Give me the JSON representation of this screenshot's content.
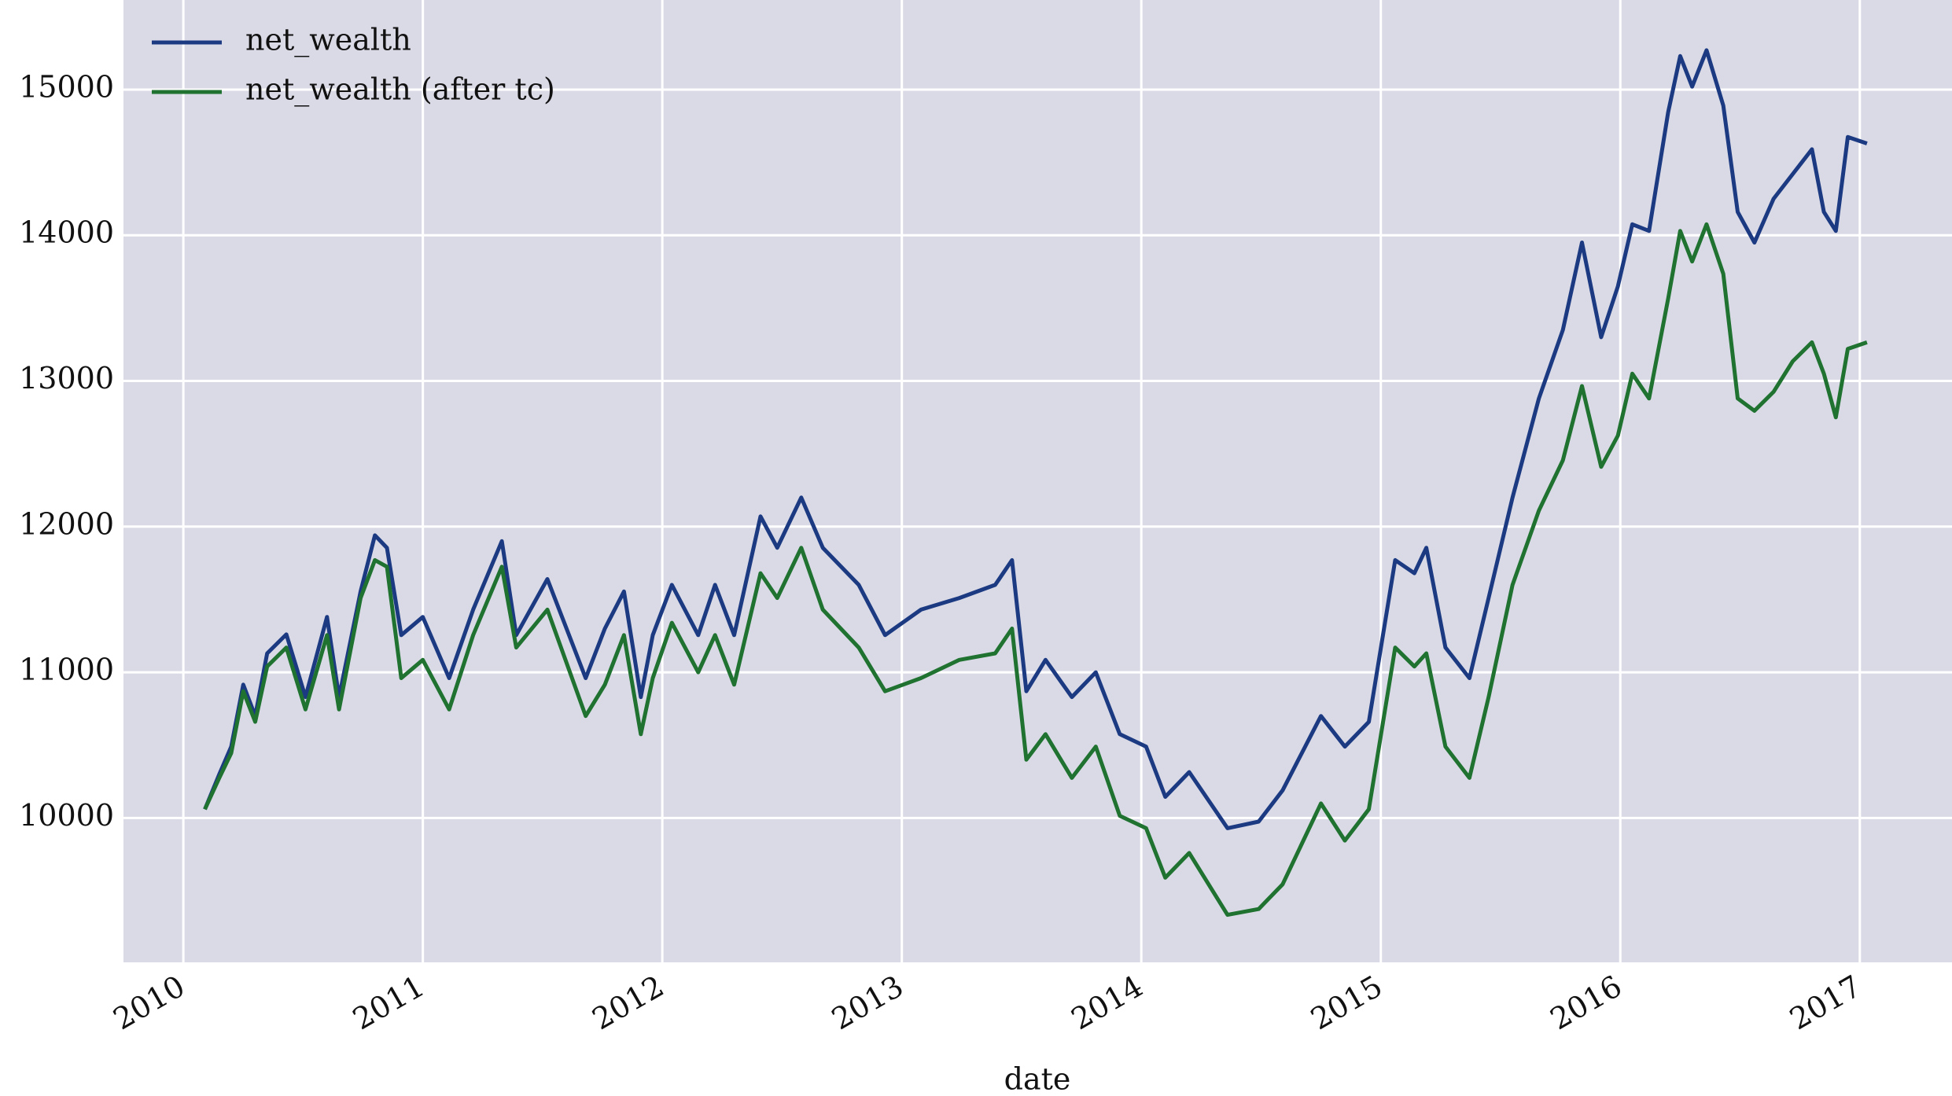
{
  "chart_data": {
    "type": "line",
    "xlabel": "date",
    "x": [
      2010.09,
      2010.15,
      2010.2,
      2010.25,
      2010.3,
      2010.35,
      2010.43,
      2010.51,
      2010.6,
      2010.65,
      2010.74,
      2010.8,
      2010.85,
      2010.91,
      2011.0,
      2011.11,
      2011.21,
      2011.33,
      2011.39,
      2011.52,
      2011.68,
      2011.76,
      2011.84,
      2011.91,
      2011.96,
      2012.04,
      2012.15,
      2012.22,
      2012.3,
      2012.41,
      2012.48,
      2012.58,
      2012.67,
      2012.82,
      2012.93,
      2013.08,
      2013.24,
      2013.39,
      2013.46,
      2013.52,
      2013.6,
      2013.71,
      2013.81,
      2013.91,
      2014.02,
      2014.1,
      2014.2,
      2014.36,
      2014.49,
      2014.59,
      2014.75,
      2014.85,
      2014.95,
      2015.06,
      2015.14,
      2015.19,
      2015.27,
      2015.37,
      2015.45,
      2015.55,
      2015.66,
      2015.76,
      2015.84,
      2015.92,
      2015.99,
      2016.05,
      2016.12,
      2016.2,
      2016.25,
      2016.3,
      2016.36,
      2016.43,
      2016.49,
      2016.56,
      2016.64,
      2016.72,
      2016.8,
      2016.85,
      2016.9,
      2016.95,
      2017.03
    ],
    "series": [
      {
        "name": "net_wealth",
        "color": "#1b3a82",
        "values": [
          10060,
          10300,
          10490,
          10915,
          10700,
          11130,
          11260,
          10830,
          11380,
          10830,
          11555,
          11940,
          11855,
          11255,
          11380,
          10960,
          11430,
          11900,
          11255,
          11640,
          10960,
          11300,
          11555,
          10830,
          11255,
          11600,
          11255,
          11600,
          11255,
          12070,
          11855,
          12200,
          11855,
          11600,
          11255,
          11430,
          11510,
          11600,
          11770,
          10870,
          11085,
          10830,
          11000,
          10575,
          10490,
          10145,
          10315,
          9930,
          9975,
          10190,
          10700,
          10490,
          10660,
          11770,
          11680,
          11855,
          11170,
          10960,
          11510,
          12200,
          12880,
          13350,
          13950,
          13300,
          13650,
          14075,
          14030,
          14845,
          15230,
          15020,
          15270,
          14890,
          14160,
          13950,
          14250,
          14420,
          14590,
          14160,
          14030,
          14675,
          14630
        ]
      },
      {
        "name": "net_wealth (after tc)",
        "color": "#1f7230",
        "values": [
          10060,
          10275,
          10445,
          10870,
          10660,
          11040,
          11170,
          10745,
          11255,
          10745,
          11510,
          11770,
          11725,
          10960,
          11085,
          10745,
          11255,
          11725,
          11170,
          11430,
          10700,
          10915,
          11255,
          10575,
          10960,
          11340,
          11000,
          11255,
          10915,
          11680,
          11510,
          11855,
          11430,
          11170,
          10870,
          10960,
          11085,
          11130,
          11300,
          10400,
          10575,
          10275,
          10490,
          10015,
          9930,
          9590,
          9760,
          9335,
          9375,
          9545,
          10100,
          9845,
          10060,
          11170,
          11040,
          11130,
          10490,
          10275,
          10830,
          11600,
          12110,
          12455,
          12965,
          12410,
          12625,
          13050,
          12880,
          13565,
          14030,
          13820,
          14075,
          13735,
          12880,
          12795,
          12925,
          13135,
          13265,
          13050,
          12750,
          13220,
          13265
        ]
      }
    ],
    "xlim": [
      2009.75,
      2017.385
    ],
    "xticks": [
      2010,
      2011,
      2012,
      2013,
      2014,
      2015,
      2016,
      2017
    ],
    "ylim": [
      9009,
      15615
    ],
    "yticks": [
      10000,
      11000,
      12000,
      13000,
      14000,
      15000
    ],
    "grid": true,
    "legend": "upper left"
  }
}
